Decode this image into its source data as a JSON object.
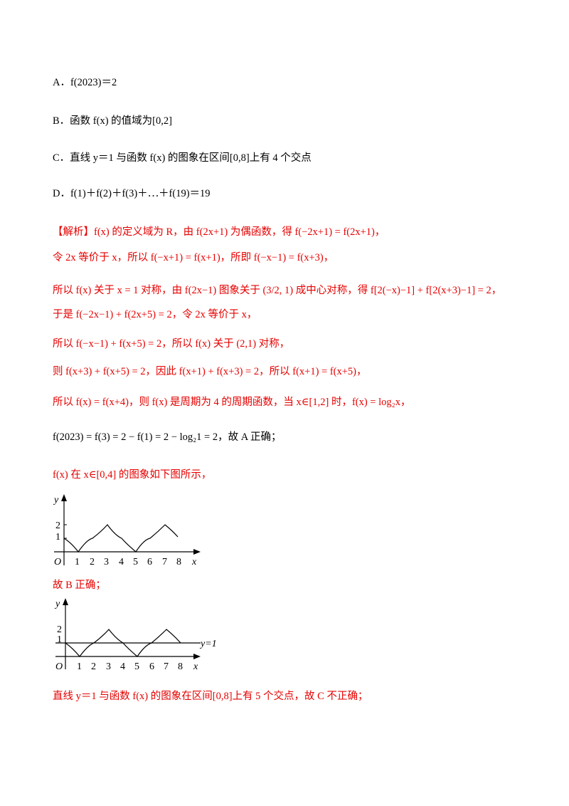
{
  "options": {
    "A": "A．f(2023)＝2",
    "B": "B．函数 f(x) 的值域为[0,2]",
    "C": "C．直线 y＝1 与函数 f(x) 的图象在区间[0,8]上有 4 个交点",
    "D": "D．f(1)＋f(2)＋f(3)＋⋯＋f(19)＝19"
  },
  "solution": {
    "l1": "【解析】f(x) 的定义域为 R，由 f(2x+1) 为偶函数，得 f(−2x+1) = f(2x+1)，",
    "l2": "令 2x 等价于 x，所以 f(−x+1) = f(x+1)，所即 f(−x−1) = f(x+3)，",
    "l3": "所以 f(x) 关于 x = 1 对称，由 f(2x−1) 图象关于 (3/2, 1) 成中心对称，得 f[2(−x)−1] + f[2(x+3)−1] = 2，",
    "l4": "于是 f(−2x−1) + f(2x+5) = 2，令 2x 等价于 x，",
    "l5": "所以 f(−x−1) + f(x+5) = 2，所以 f(x) 关于 (2,1) 对称，",
    "l6": "则 f(x+3) + f(x+5) = 2，因此 f(x+1) + f(x+3) = 2，所以 f(x+1) = f(x+5)，",
    "l7": "所以 f(x) = f(x+4)，则 f(x) 是周期为 4 的周期函数，当 x∈[1,2] 时，f(x) = log₂x，",
    "l8": "f(2023) = f(3) = 2 − f(1) = 2 − log₂1 = 2，故 A 正确；",
    "l9": "f(x) 在 x∈[0,4] 的图象如下图所示，",
    "l10": "故 B 正确；",
    "l11": "直线 y＝1 与函数 f(x) 的图象在区间[0,8]上有 5 个交点，故 C 不正确；"
  },
  "graph1": {
    "ylabel": "y",
    "xlabel": "x",
    "origin": "O",
    "xticks": [
      "1",
      "2",
      "3",
      "4",
      "5",
      "6",
      "7",
      "8"
    ],
    "yticks": [
      "1",
      "2"
    ]
  },
  "graph2": {
    "ylabel": "y",
    "xlabel": "x",
    "origin": "O",
    "xticks": [
      "1",
      "2",
      "3",
      "4",
      "5",
      "6",
      "7",
      "8"
    ],
    "yticks": [
      "1",
      "2"
    ],
    "line_label": "y=1"
  },
  "colors": {
    "solution_text": "#e60000",
    "body_text": "#000000"
  }
}
